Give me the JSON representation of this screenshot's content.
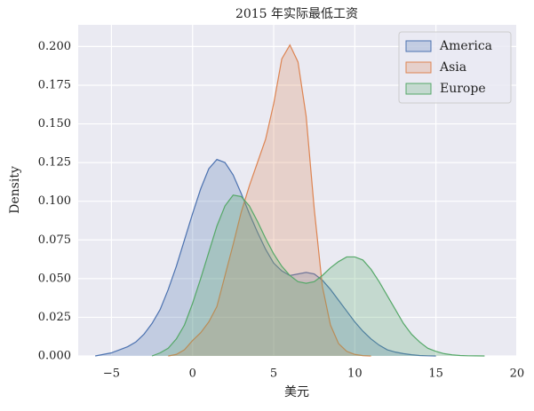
{
  "chart_data": {
    "type": "kde",
    "title": "2015 年实际最低工资",
    "xlabel": "美元",
    "ylabel": "Density",
    "x": [
      -6,
      -5.5,
      -5,
      -4.5,
      -4,
      -3.5,
      -3,
      -2.5,
      -2,
      -1.5,
      -1,
      -0.5,
      0,
      0.5,
      1,
      1.5,
      2,
      2.5,
      3,
      3.5,
      4,
      4.5,
      5,
      5.5,
      6,
      6.5,
      7,
      7.5,
      8,
      8.5,
      9,
      9.5,
      10,
      10.5,
      11,
      11.5,
      12,
      12.5,
      13,
      13.5,
      14,
      14.5,
      15,
      15.5,
      16,
      16.5,
      17,
      17.5,
      18
    ],
    "series": [
      {
        "name": "America",
        "color": "#4c72b0",
        "values": [
          0,
          0.001,
          0.002,
          0.004,
          0.006,
          0.009,
          0.014,
          0.021,
          0.03,
          0.043,
          0.058,
          0.075,
          0.092,
          0.108,
          0.121,
          0.127,
          0.125,
          0.117,
          0.105,
          0.092,
          0.08,
          0.069,
          0.06,
          0.055,
          0.052,
          0.053,
          0.054,
          0.053,
          0.049,
          0.043,
          0.036,
          0.029,
          0.022,
          0.016,
          0.011,
          0.007,
          0.004,
          0.0025,
          0.0015,
          0.0008,
          0.0003,
          0.0001,
          0,
          null,
          null,
          null,
          null,
          null,
          null
        ]
      },
      {
        "name": "Asia",
        "color": "#dd8452",
        "values": [
          null,
          null,
          null,
          null,
          null,
          null,
          null,
          null,
          null,
          0,
          0.001,
          0.004,
          0.01,
          0.015,
          0.022,
          0.032,
          0.052,
          0.072,
          0.093,
          0.11,
          0.125,
          0.14,
          0.163,
          0.192,
          0.201,
          0.19,
          0.155,
          0.095,
          0.045,
          0.02,
          0.008,
          0.003,
          0.001,
          0.0002,
          0,
          null,
          null,
          null,
          null,
          null,
          null,
          null,
          null,
          null,
          null,
          null,
          null,
          null,
          null
        ]
      },
      {
        "name": "Europe",
        "color": "#55a868",
        "values": [
          null,
          null,
          null,
          null,
          null,
          null,
          null,
          0,
          0.002,
          0.005,
          0.011,
          0.02,
          0.034,
          0.05,
          0.067,
          0.084,
          0.097,
          0.104,
          0.103,
          0.097,
          0.087,
          0.076,
          0.066,
          0.058,
          0.052,
          0.048,
          0.047,
          0.048,
          0.052,
          0.057,
          0.061,
          0.064,
          0.064,
          0.062,
          0.056,
          0.048,
          0.039,
          0.03,
          0.021,
          0.014,
          0.009,
          0.005,
          0.003,
          0.0015,
          0.0007,
          0.0003,
          0.0001,
          5e-05,
          0
        ]
      }
    ],
    "xlim": [
      -7.05,
      19.95
    ],
    "ylim": [
      0,
      0.214
    ],
    "xticks": [
      {
        "value": -5,
        "label": "−5"
      },
      0,
      5,
      10,
      15,
      20
    ],
    "yticks": [
      {
        "value": 0,
        "label": "0.000"
      },
      {
        "value": 0.025,
        "label": "0.025"
      },
      {
        "value": 0.05,
        "label": "0.050"
      },
      {
        "value": 0.075,
        "label": "0.075"
      },
      {
        "value": 0.1,
        "label": "0.100"
      },
      {
        "value": 0.125,
        "label": "0.125"
      },
      {
        "value": 0.15,
        "label": "0.150"
      },
      {
        "value": 0.175,
        "label": "0.175"
      },
      {
        "value": 0.2,
        "label": "0.200"
      }
    ],
    "grid": true,
    "legend": "upper right"
  }
}
